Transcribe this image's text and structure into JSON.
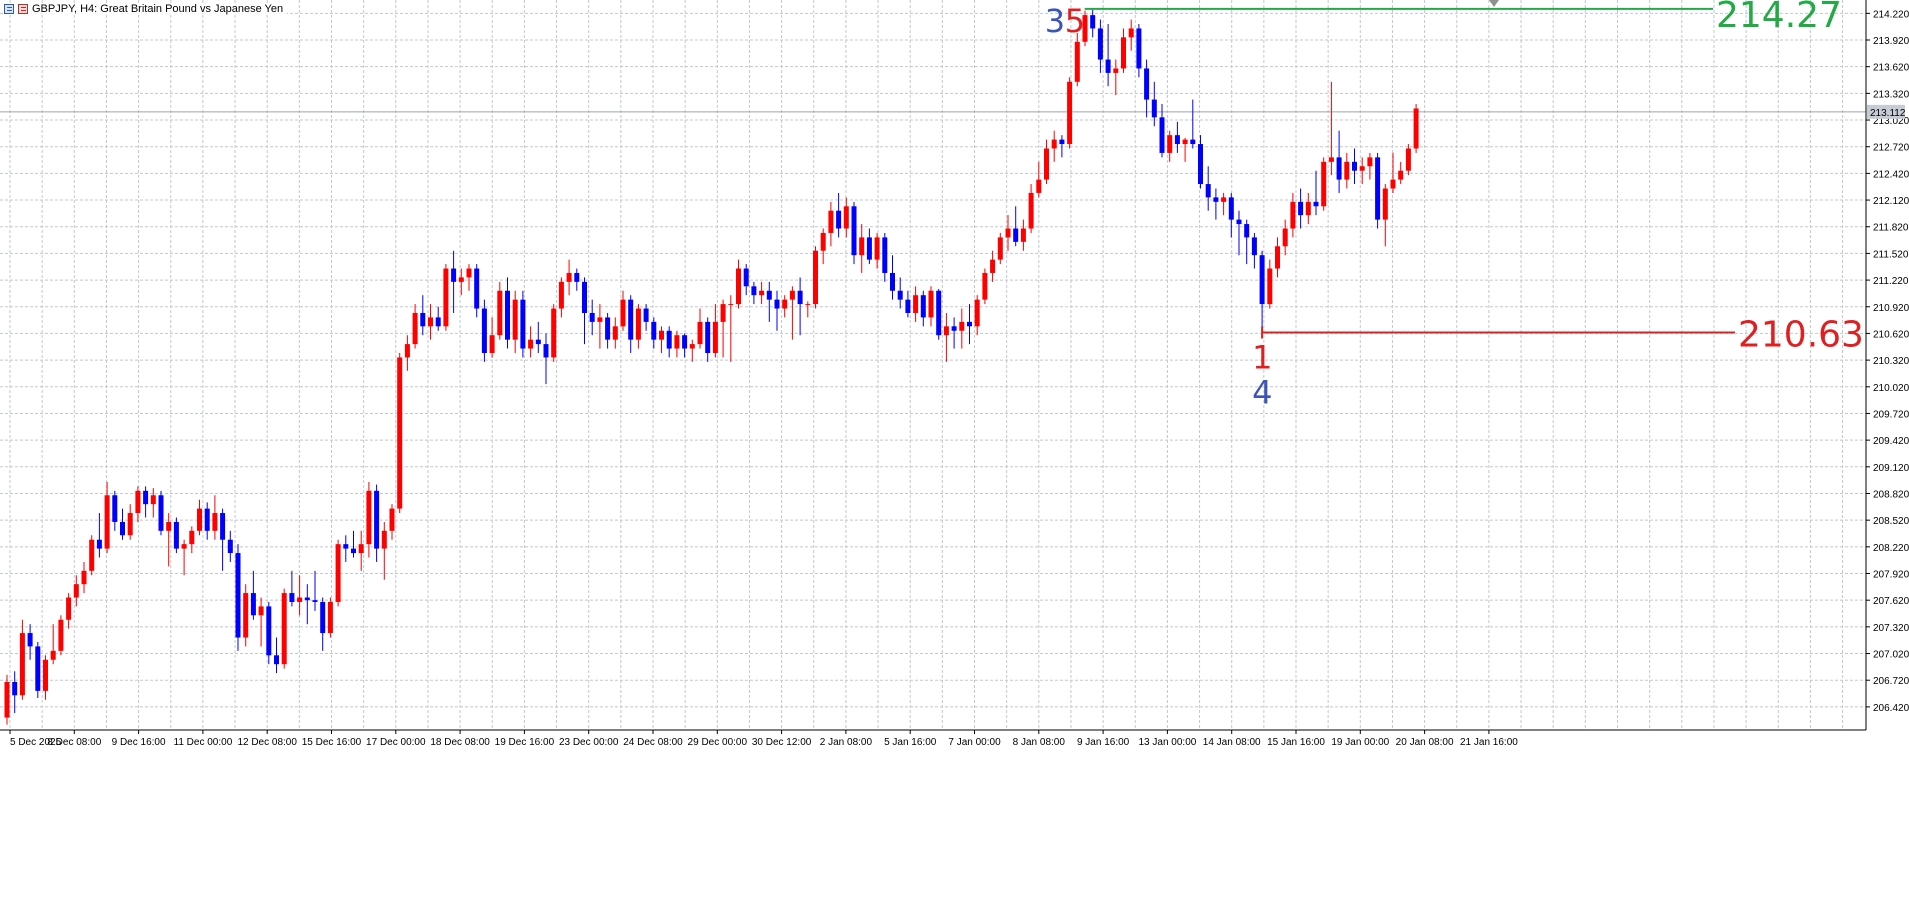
{
  "window": {
    "title": "GBPJPY, H4:  Great Britain Pound vs Japanese Yen"
  },
  "colors": {
    "bull": "#ff0000",
    "bear": "#0000ff",
    "grid": "#c0c8d0",
    "high_line": "#22aa44",
    "low_line": "#e02020",
    "current_price_bg": "#c6ccd6",
    "wave_blue": "#3d55b8",
    "wave_red": "#e02020"
  },
  "chart_data": {
    "type": "candlestick",
    "symbol": "GBPJPY",
    "timeframe": "H4",
    "title": "GBPJPY, H4:  Great Britain Pound vs Japanese Yen",
    "ylim": [
      206.16,
      214.37
    ],
    "grid": true,
    "y_ticks": [
      "214.220",
      "213.920",
      "213.620",
      "213.320",
      "213.020",
      "212.720",
      "212.420",
      "212.120",
      "211.820",
      "211.520",
      "211.220",
      "210.920",
      "210.620",
      "210.320",
      "210.020",
      "209.720",
      "209.420",
      "209.120",
      "208.820",
      "208.520",
      "208.220",
      "207.920",
      "207.620",
      "207.320",
      "207.020",
      "206.720",
      "206.420"
    ],
    "x_ticks": [
      "5 Dec 2025",
      "8 Dec 08:00",
      "9 Dec 16:00",
      "11 Dec 00:00",
      "12 Dec 08:00",
      "15 Dec 16:00",
      "17 Dec 00:00",
      "18 Dec 08:00",
      "19 Dec 16:00",
      "23 Dec 00:00",
      "24 Dec 08:00",
      "29 Dec 00:00",
      "30 Dec 12:00",
      "2 Jan 08:00",
      "5 Jan 16:00",
      "7 Jan 00:00",
      "8 Jan 08:00",
      "9 Jan 16:00",
      "13 Jan 00:00",
      "14 Jan 08:00",
      "15 Jan 16:00",
      "19 Jan 00:00",
      "20 Jan 08:00",
      "21 Jan 16:00"
    ],
    "current_price": "213.112",
    "current_value": 213.112,
    "candles": [
      {
        "o": 206.3,
        "h": 206.78,
        "l": 206.22,
        "c": 206.7
      },
      {
        "o": 206.7,
        "h": 206.82,
        "l": 206.35,
        "c": 206.55
      },
      {
        "o": 206.55,
        "h": 207.4,
        "l": 206.5,
        "c": 207.25
      },
      {
        "o": 207.25,
        "h": 207.35,
        "l": 206.95,
        "c": 207.1
      },
      {
        "o": 207.1,
        "h": 207.15,
        "l": 206.52,
        "c": 206.6
      },
      {
        "o": 206.6,
        "h": 207.0,
        "l": 206.5,
        "c": 206.95
      },
      {
        "o": 206.95,
        "h": 207.35,
        "l": 206.9,
        "c": 207.05
      },
      {
        "o": 207.05,
        "h": 207.45,
        "l": 207.0,
        "c": 207.4
      },
      {
        "o": 207.4,
        "h": 207.7,
        "l": 207.3,
        "c": 207.65
      },
      {
        "o": 207.65,
        "h": 207.9,
        "l": 207.55,
        "c": 207.8
      },
      {
        "o": 207.8,
        "h": 208.05,
        "l": 207.7,
        "c": 207.95
      },
      {
        "o": 207.95,
        "h": 208.35,
        "l": 207.9,
        "c": 208.3
      },
      {
        "o": 208.3,
        "h": 208.6,
        "l": 208.1,
        "c": 208.2
      },
      {
        "o": 208.2,
        "h": 208.95,
        "l": 208.15,
        "c": 208.8
      },
      {
        "o": 208.8,
        "h": 208.85,
        "l": 208.4,
        "c": 208.5
      },
      {
        "o": 208.5,
        "h": 208.65,
        "l": 208.3,
        "c": 208.35
      },
      {
        "o": 208.35,
        "h": 208.7,
        "l": 208.3,
        "c": 208.6
      },
      {
        "o": 208.6,
        "h": 208.9,
        "l": 208.5,
        "c": 208.85
      },
      {
        "o": 208.85,
        "h": 208.9,
        "l": 208.55,
        "c": 208.7
      },
      {
        "o": 208.7,
        "h": 208.88,
        "l": 208.55,
        "c": 208.8
      },
      {
        "o": 208.8,
        "h": 208.85,
        "l": 208.35,
        "c": 208.4
      },
      {
        "o": 208.4,
        "h": 208.6,
        "l": 208.0,
        "c": 208.5
      },
      {
        "o": 208.5,
        "h": 208.55,
        "l": 208.15,
        "c": 208.2
      },
      {
        "o": 208.2,
        "h": 208.3,
        "l": 207.9,
        "c": 208.25
      },
      {
        "o": 208.25,
        "h": 208.45,
        "l": 208.15,
        "c": 208.4
      },
      {
        "o": 208.4,
        "h": 208.75,
        "l": 208.35,
        "c": 208.65
      },
      {
        "o": 208.65,
        "h": 208.72,
        "l": 208.3,
        "c": 208.4
      },
      {
        "o": 208.4,
        "h": 208.8,
        "l": 208.3,
        "c": 208.6
      },
      {
        "o": 208.6,
        "h": 208.65,
        "l": 207.95,
        "c": 208.3
      },
      {
        "o": 208.3,
        "h": 208.4,
        "l": 208.05,
        "c": 208.15
      },
      {
        "o": 208.15,
        "h": 208.25,
        "l": 207.05,
        "c": 207.2
      },
      {
        "o": 207.2,
        "h": 207.8,
        "l": 207.1,
        "c": 207.7
      },
      {
        "o": 207.7,
        "h": 207.95,
        "l": 207.4,
        "c": 207.45
      },
      {
        "o": 207.45,
        "h": 207.65,
        "l": 207.1,
        "c": 207.55
      },
      {
        "o": 207.55,
        "h": 207.6,
        "l": 206.9,
        "c": 207.0
      },
      {
        "o": 207.0,
        "h": 207.2,
        "l": 206.8,
        "c": 206.9
      },
      {
        "o": 206.9,
        "h": 207.75,
        "l": 206.85,
        "c": 207.7
      },
      {
        "o": 207.7,
        "h": 207.95,
        "l": 207.55,
        "c": 207.6
      },
      {
        "o": 207.6,
        "h": 207.9,
        "l": 207.45,
        "c": 207.65
      },
      {
        "o": 207.65,
        "h": 207.8,
        "l": 207.35,
        "c": 207.62
      },
      {
        "o": 207.62,
        "h": 207.95,
        "l": 207.5,
        "c": 207.6
      },
      {
        "o": 207.6,
        "h": 207.65,
        "l": 207.05,
        "c": 207.25
      },
      {
        "o": 207.25,
        "h": 207.65,
        "l": 207.2,
        "c": 207.6
      },
      {
        "o": 207.6,
        "h": 208.3,
        "l": 207.55,
        "c": 208.25
      },
      {
        "o": 208.25,
        "h": 208.35,
        "l": 208.05,
        "c": 208.2
      },
      {
        "o": 208.2,
        "h": 208.4,
        "l": 208.1,
        "c": 208.15
      },
      {
        "o": 208.15,
        "h": 208.4,
        "l": 207.95,
        "c": 208.25
      },
      {
        "o": 208.25,
        "h": 208.95,
        "l": 208.1,
        "c": 208.85
      },
      {
        "o": 208.85,
        "h": 208.92,
        "l": 208.05,
        "c": 208.2
      },
      {
        "o": 208.2,
        "h": 208.5,
        "l": 207.85,
        "c": 208.4
      },
      {
        "o": 208.4,
        "h": 208.7,
        "l": 208.3,
        "c": 208.65
      },
      {
        "o": 208.65,
        "h": 210.4,
        "l": 208.6,
        "c": 210.35
      },
      {
        "o": 210.35,
        "h": 210.6,
        "l": 210.2,
        "c": 210.5
      },
      {
        "o": 210.5,
        "h": 210.95,
        "l": 210.45,
        "c": 210.85
      },
      {
        "o": 210.85,
        "h": 211.05,
        "l": 210.6,
        "c": 210.7
      },
      {
        "o": 210.7,
        "h": 210.95,
        "l": 210.55,
        "c": 210.8
      },
      {
        "o": 210.8,
        "h": 210.92,
        "l": 210.65,
        "c": 210.7
      },
      {
        "o": 210.7,
        "h": 211.4,
        "l": 210.65,
        "c": 211.35
      },
      {
        "o": 211.35,
        "h": 211.55,
        "l": 210.85,
        "c": 211.2
      },
      {
        "o": 211.2,
        "h": 211.35,
        "l": 211.05,
        "c": 211.25
      },
      {
        "o": 211.25,
        "h": 211.4,
        "l": 211.1,
        "c": 211.35
      },
      {
        "o": 211.35,
        "h": 211.4,
        "l": 210.8,
        "c": 210.9
      },
      {
        "o": 210.9,
        "h": 211.0,
        "l": 210.3,
        "c": 210.4
      },
      {
        "o": 210.4,
        "h": 210.8,
        "l": 210.35,
        "c": 210.6
      },
      {
        "o": 210.6,
        "h": 211.2,
        "l": 210.55,
        "c": 211.1
      },
      {
        "o": 211.1,
        "h": 211.25,
        "l": 210.45,
        "c": 210.55
      },
      {
        "o": 210.55,
        "h": 211.1,
        "l": 210.4,
        "c": 211.0
      },
      {
        "o": 211.0,
        "h": 211.1,
        "l": 210.35,
        "c": 210.45
      },
      {
        "o": 210.45,
        "h": 210.7,
        "l": 210.35,
        "c": 210.55
      },
      {
        "o": 210.55,
        "h": 210.75,
        "l": 210.4,
        "c": 210.5
      },
      {
        "o": 210.5,
        "h": 210.62,
        "l": 210.05,
        "c": 210.35
      },
      {
        "o": 210.35,
        "h": 210.95,
        "l": 210.3,
        "c": 210.9
      },
      {
        "o": 210.9,
        "h": 211.25,
        "l": 210.8,
        "c": 211.2
      },
      {
        "o": 211.2,
        "h": 211.45,
        "l": 211.05,
        "c": 211.3
      },
      {
        "o": 211.3,
        "h": 211.35,
        "l": 211.1,
        "c": 211.2
      },
      {
        "o": 211.2,
        "h": 211.25,
        "l": 210.5,
        "c": 210.85
      },
      {
        "o": 210.85,
        "h": 211.0,
        "l": 210.6,
        "c": 210.75
      },
      {
        "o": 210.75,
        "h": 210.95,
        "l": 210.45,
        "c": 210.8
      },
      {
        "o": 210.8,
        "h": 210.85,
        "l": 210.45,
        "c": 210.55
      },
      {
        "o": 210.55,
        "h": 210.8,
        "l": 210.45,
        "c": 210.7
      },
      {
        "o": 210.7,
        "h": 211.1,
        "l": 210.65,
        "c": 211.0
      },
      {
        "o": 211.0,
        "h": 211.05,
        "l": 210.4,
        "c": 210.55
      },
      {
        "o": 210.55,
        "h": 210.95,
        "l": 210.45,
        "c": 210.9
      },
      {
        "o": 210.9,
        "h": 210.95,
        "l": 210.65,
        "c": 210.75
      },
      {
        "o": 210.75,
        "h": 210.8,
        "l": 210.45,
        "c": 210.55
      },
      {
        "o": 210.55,
        "h": 210.7,
        "l": 210.4,
        "c": 210.65
      },
      {
        "o": 210.65,
        "h": 210.7,
        "l": 210.35,
        "c": 210.45
      },
      {
        "o": 210.45,
        "h": 210.65,
        "l": 210.35,
        "c": 210.6
      },
      {
        "o": 210.6,
        "h": 210.62,
        "l": 210.35,
        "c": 210.45
      },
      {
        "o": 210.45,
        "h": 210.55,
        "l": 210.3,
        "c": 210.5
      },
      {
        "o": 210.5,
        "h": 210.9,
        "l": 210.45,
        "c": 210.75
      },
      {
        "o": 210.75,
        "h": 210.8,
        "l": 210.3,
        "c": 210.4
      },
      {
        "o": 210.4,
        "h": 210.95,
        "l": 210.35,
        "c": 210.75
      },
      {
        "o": 210.75,
        "h": 211.0,
        "l": 210.35,
        "c": 210.95
      },
      {
        "o": 210.95,
        "h": 211.05,
        "l": 210.3,
        "c": 210.95
      },
      {
        "o": 210.95,
        "h": 211.45,
        "l": 210.9,
        "c": 211.35
      },
      {
        "o": 211.35,
        "h": 211.4,
        "l": 211.05,
        "c": 211.15
      },
      {
        "o": 211.15,
        "h": 211.2,
        "l": 210.95,
        "c": 211.05
      },
      {
        "o": 211.05,
        "h": 211.2,
        "l": 210.95,
        "c": 211.1
      },
      {
        "o": 211.1,
        "h": 211.2,
        "l": 210.75,
        "c": 211.0
      },
      {
        "o": 211.0,
        "h": 211.1,
        "l": 210.65,
        "c": 210.9
      },
      {
        "o": 210.9,
        "h": 211.05,
        "l": 210.8,
        "c": 211.0
      },
      {
        "o": 211.0,
        "h": 211.15,
        "l": 210.55,
        "c": 211.1
      },
      {
        "o": 211.1,
        "h": 211.25,
        "l": 210.6,
        "c": 210.95
      },
      {
        "o": 210.95,
        "h": 210.98,
        "l": 210.8,
        "c": 210.95
      },
      {
        "o": 210.95,
        "h": 211.6,
        "l": 210.9,
        "c": 211.55
      },
      {
        "o": 211.55,
        "h": 211.8,
        "l": 211.4,
        "c": 211.75
      },
      {
        "o": 211.75,
        "h": 212.1,
        "l": 211.6,
        "c": 212.0
      },
      {
        "o": 212.0,
        "h": 212.2,
        "l": 211.7,
        "c": 211.8
      },
      {
        "o": 211.8,
        "h": 212.15,
        "l": 211.7,
        "c": 212.05
      },
      {
        "o": 212.05,
        "h": 212.1,
        "l": 211.4,
        "c": 211.5
      },
      {
        "o": 211.5,
        "h": 211.85,
        "l": 211.3,
        "c": 211.7
      },
      {
        "o": 211.7,
        "h": 211.8,
        "l": 211.4,
        "c": 211.45
      },
      {
        "o": 211.45,
        "h": 211.75,
        "l": 211.35,
        "c": 211.7
      },
      {
        "o": 211.7,
        "h": 211.75,
        "l": 211.2,
        "c": 211.3
      },
      {
        "o": 211.3,
        "h": 211.5,
        "l": 211.0,
        "c": 211.1
      },
      {
        "o": 211.1,
        "h": 211.25,
        "l": 210.9,
        "c": 211.0
      },
      {
        "o": 211.0,
        "h": 211.1,
        "l": 210.8,
        "c": 210.85
      },
      {
        "o": 210.85,
        "h": 211.15,
        "l": 210.75,
        "c": 211.05
      },
      {
        "o": 211.05,
        "h": 211.1,
        "l": 210.7,
        "c": 210.8
      },
      {
        "o": 210.8,
        "h": 211.15,
        "l": 210.7,
        "c": 211.1
      },
      {
        "o": 211.1,
        "h": 211.12,
        "l": 210.55,
        "c": 210.6
      },
      {
        "o": 210.6,
        "h": 210.85,
        "l": 210.3,
        "c": 210.7
      },
      {
        "o": 210.7,
        "h": 210.8,
        "l": 210.45,
        "c": 210.65
      },
      {
        "o": 210.65,
        "h": 210.9,
        "l": 210.45,
        "c": 210.75
      },
      {
        "o": 210.75,
        "h": 210.95,
        "l": 210.5,
        "c": 210.7
      },
      {
        "o": 210.7,
        "h": 211.05,
        "l": 210.6,
        "c": 211.0
      },
      {
        "o": 211.0,
        "h": 211.35,
        "l": 210.95,
        "c": 211.3
      },
      {
        "o": 211.3,
        "h": 211.55,
        "l": 211.2,
        "c": 211.45
      },
      {
        "o": 211.45,
        "h": 211.75,
        "l": 211.4,
        "c": 211.7
      },
      {
        "o": 211.7,
        "h": 211.95,
        "l": 211.55,
        "c": 211.8
      },
      {
        "o": 211.8,
        "h": 212.05,
        "l": 211.6,
        "c": 211.65
      },
      {
        "o": 211.65,
        "h": 211.9,
        "l": 211.55,
        "c": 211.8
      },
      {
        "o": 211.8,
        "h": 212.3,
        "l": 211.75,
        "c": 212.2
      },
      {
        "o": 212.2,
        "h": 212.55,
        "l": 212.15,
        "c": 212.35
      },
      {
        "o": 212.35,
        "h": 212.8,
        "l": 212.3,
        "c": 212.7
      },
      {
        "o": 212.7,
        "h": 212.9,
        "l": 212.55,
        "c": 212.8
      },
      {
        "o": 212.8,
        "h": 212.85,
        "l": 212.6,
        "c": 212.75
      },
      {
        "o": 212.75,
        "h": 213.5,
        "l": 212.7,
        "c": 213.45
      },
      {
        "o": 213.45,
        "h": 214.0,
        "l": 213.4,
        "c": 213.9
      },
      {
        "o": 213.9,
        "h": 214.25,
        "l": 213.85,
        "c": 214.2
      },
      {
        "o": 214.2,
        "h": 214.27,
        "l": 213.95,
        "c": 214.05
      },
      {
        "o": 214.05,
        "h": 214.15,
        "l": 213.55,
        "c": 213.7
      },
      {
        "o": 213.7,
        "h": 214.1,
        "l": 213.4,
        "c": 213.55
      },
      {
        "o": 213.55,
        "h": 213.7,
        "l": 213.3,
        "c": 213.6
      },
      {
        "o": 213.6,
        "h": 214.05,
        "l": 213.55,
        "c": 213.95
      },
      {
        "o": 213.95,
        "h": 214.15,
        "l": 213.8,
        "c": 214.05
      },
      {
        "o": 214.05,
        "h": 214.1,
        "l": 213.5,
        "c": 213.6
      },
      {
        "o": 213.6,
        "h": 213.7,
        "l": 213.05,
        "c": 213.25
      },
      {
        "o": 213.25,
        "h": 213.45,
        "l": 212.95,
        "c": 213.05
      },
      {
        "o": 213.05,
        "h": 213.2,
        "l": 212.6,
        "c": 212.65
      },
      {
        "o": 212.65,
        "h": 212.9,
        "l": 212.55,
        "c": 212.85
      },
      {
        "o": 212.85,
        "h": 213.0,
        "l": 212.65,
        "c": 212.75
      },
      {
        "o": 212.75,
        "h": 212.82,
        "l": 212.55,
        "c": 212.8
      },
      {
        "o": 212.8,
        "h": 213.25,
        "l": 212.7,
        "c": 212.75
      },
      {
        "o": 212.75,
        "h": 212.85,
        "l": 212.25,
        "c": 212.3
      },
      {
        "o": 212.3,
        "h": 212.5,
        "l": 212.0,
        "c": 212.15
      },
      {
        "o": 212.15,
        "h": 212.25,
        "l": 211.9,
        "c": 212.1
      },
      {
        "o": 212.1,
        "h": 212.2,
        "l": 211.95,
        "c": 212.15
      },
      {
        "o": 212.15,
        "h": 212.2,
        "l": 211.7,
        "c": 211.9
      },
      {
        "o": 211.9,
        "h": 212.0,
        "l": 211.5,
        "c": 211.85
      },
      {
        "o": 211.85,
        "h": 211.9,
        "l": 211.4,
        "c": 211.7
      },
      {
        "o": 211.7,
        "h": 211.75,
        "l": 211.35,
        "c": 211.5
      },
      {
        "o": 211.5,
        "h": 211.55,
        "l": 210.63,
        "c": 210.95
      },
      {
        "o": 210.95,
        "h": 211.45,
        "l": 210.9,
        "c": 211.35
      },
      {
        "o": 211.35,
        "h": 211.7,
        "l": 211.25,
        "c": 211.6
      },
      {
        "o": 211.6,
        "h": 211.9,
        "l": 211.5,
        "c": 211.8
      },
      {
        "o": 211.8,
        "h": 212.2,
        "l": 211.7,
        "c": 212.1
      },
      {
        "o": 212.1,
        "h": 212.25,
        "l": 211.8,
        "c": 211.95
      },
      {
        "o": 211.95,
        "h": 212.2,
        "l": 211.85,
        "c": 212.1
      },
      {
        "o": 212.1,
        "h": 212.45,
        "l": 211.95,
        "c": 212.05
      },
      {
        "o": 212.05,
        "h": 212.6,
        "l": 212.0,
        "c": 212.55
      },
      {
        "o": 212.55,
        "h": 213.45,
        "l": 212.4,
        "c": 212.6
      },
      {
        "o": 212.6,
        "h": 212.9,
        "l": 212.2,
        "c": 212.35
      },
      {
        "o": 212.35,
        "h": 212.65,
        "l": 212.25,
        "c": 212.55
      },
      {
        "o": 212.55,
        "h": 212.7,
        "l": 212.3,
        "c": 212.45
      },
      {
        "o": 212.45,
        "h": 212.6,
        "l": 212.3,
        "c": 212.5
      },
      {
        "o": 212.5,
        "h": 212.65,
        "l": 212.35,
        "c": 212.6
      },
      {
        "o": 212.6,
        "h": 212.65,
        "l": 211.8,
        "c": 211.9
      },
      {
        "o": 211.9,
        "h": 212.3,
        "l": 211.6,
        "c": 212.25
      },
      {
        "o": 212.25,
        "h": 212.65,
        "l": 212.2,
        "c": 212.35
      },
      {
        "o": 212.35,
        "h": 212.55,
        "l": 212.3,
        "c": 212.45
      },
      {
        "o": 212.45,
        "h": 212.75,
        "l": 212.4,
        "c": 212.7
      },
      {
        "o": 212.7,
        "h": 213.2,
        "l": 212.65,
        "c": 213.15
      }
    ],
    "annotations": {
      "high": {
        "value": 214.27,
        "label": "214.27"
      },
      "low": {
        "value": 210.63,
        "label": "210.63"
      },
      "wave_top_blue": "3",
      "wave_top_red": "5",
      "wave_bottom_red": "1",
      "wave_bottom_blue": "4"
    }
  }
}
